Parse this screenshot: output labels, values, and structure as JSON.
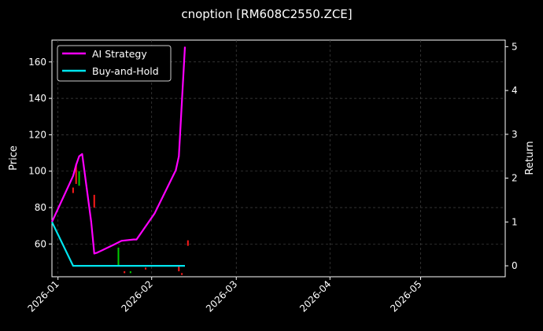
{
  "chart_data": {
    "type": "line",
    "title": "cnoption [RM608C2550.ZCE]",
    "ylabel": "Price",
    "ylabel_right": "Return",
    "grid": true,
    "legend_position": "top-left",
    "xlim": [
      "2025-12-30",
      "2026-05-29"
    ],
    "ylim_left": [
      42,
      172
    ],
    "ylim_right": [
      -0.25,
      5.15
    ],
    "x_ticks": [
      "2026-01",
      "2026-02",
      "2026-03",
      "2026-04",
      "2026-05"
    ],
    "x_tick_labels": [
      "2026-01",
      "2026-02",
      "2026-03",
      "2026-04",
      "2026-05"
    ],
    "y_ticks_left": [
      60,
      80,
      100,
      120,
      140,
      160
    ],
    "y_ticks_right": [
      0,
      1,
      2,
      3,
      4,
      5
    ],
    "colors": {
      "ai_strategy": "#ff00ff",
      "buy_and_hold": "#00e5ee",
      "up_candle": "#00cc00",
      "down_candle": "#ff1a1a",
      "grid": "#444444"
    },
    "series": [
      {
        "name": "AI Strategy",
        "axis": "right",
        "points": [
          [
            "2025-12-30",
            1.0
          ],
          [
            "2026-01-06",
            2.05
          ],
          [
            "2026-01-07",
            2.3
          ],
          [
            "2026-01-08",
            2.5
          ],
          [
            "2026-01-09",
            2.55
          ],
          [
            "2026-01-12",
            1.0
          ],
          [
            "2026-01-13",
            0.28
          ],
          [
            "2026-01-14",
            0.3
          ],
          [
            "2026-01-20",
            0.5
          ],
          [
            "2026-01-22",
            0.57
          ],
          [
            "2026-01-26",
            0.6
          ],
          [
            "2026-01-27",
            0.6
          ],
          [
            "2026-02-02",
            1.2
          ],
          [
            "2026-02-09",
            2.18
          ],
          [
            "2026-02-10",
            2.5
          ],
          [
            "2026-02-12",
            5.0
          ]
        ]
      },
      {
        "name": "Buy-and-Hold",
        "axis": "right",
        "points": [
          [
            "2025-12-30",
            1.0
          ],
          [
            "2026-01-06",
            0.0
          ],
          [
            "2026-02-12",
            0.0
          ]
        ]
      }
    ],
    "candles": [
      {
        "date": "2026-01-06",
        "low": 88,
        "high": 91,
        "dir": "down"
      },
      {
        "date": "2026-01-07",
        "low": 93,
        "high": 104,
        "dir": "down"
      },
      {
        "date": "2026-01-08",
        "low": 92,
        "high": 100,
        "dir": "up"
      },
      {
        "date": "2026-01-13",
        "low": 80,
        "high": 87,
        "dir": "down"
      },
      {
        "date": "2026-01-21",
        "low": 48,
        "high": 58,
        "dir": "up"
      },
      {
        "date": "2026-01-23",
        "low": 44,
        "high": 45,
        "dir": "down"
      },
      {
        "date": "2026-01-25",
        "low": 44,
        "high": 45,
        "dir": "up"
      },
      {
        "date": "2026-01-30",
        "low": 46,
        "high": 47,
        "dir": "down"
      },
      {
        "date": "2026-02-10",
        "low": 45,
        "high": 48,
        "dir": "down"
      },
      {
        "date": "2026-02-11",
        "low": 43,
        "high": 44,
        "dir": "down"
      },
      {
        "date": "2026-02-13",
        "low": 59,
        "high": 62,
        "dir": "down"
      }
    ]
  }
}
